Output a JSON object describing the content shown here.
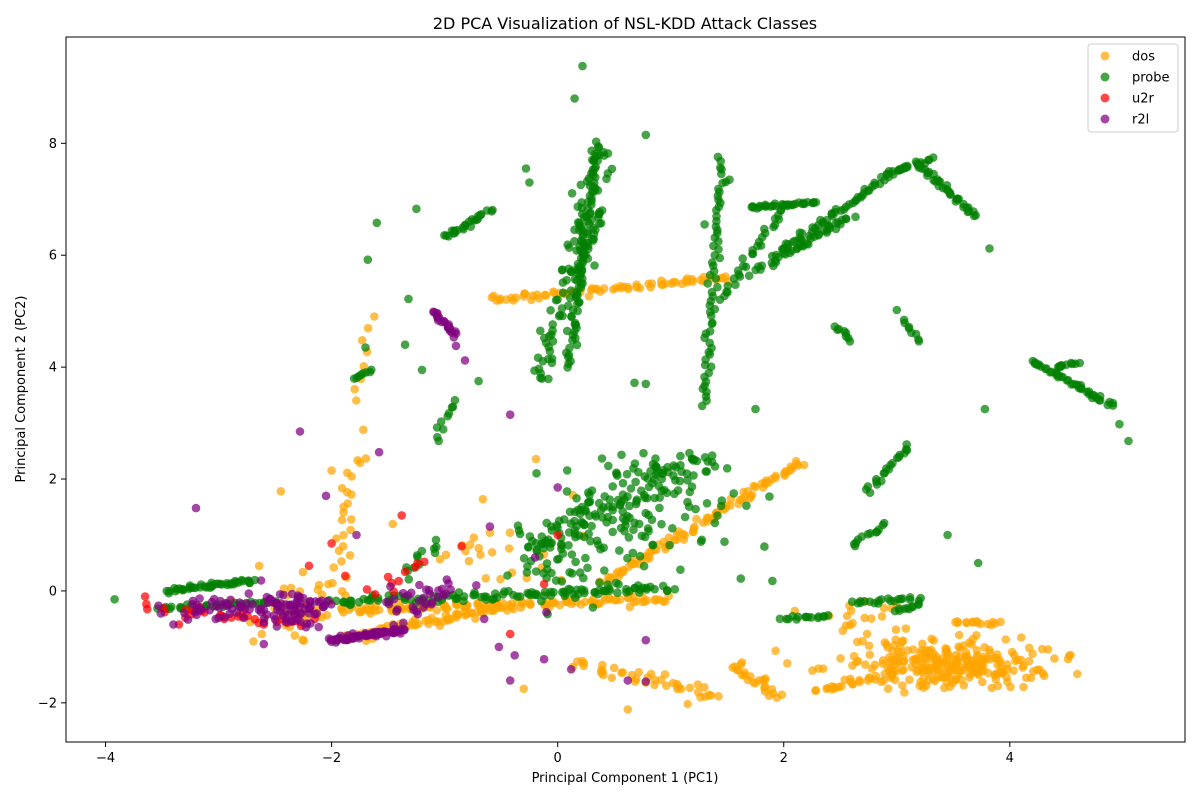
{
  "chart_data": {
    "type": "scatter",
    "title": "2D PCA Visualization of NSL-KDD Attack Classes",
    "xlabel": "Principal Component 1 (PC1)",
    "ylabel": "Principal Component 2 (PC2)",
    "xlim": [
      -4.35,
      5.55
    ],
    "ylim": [
      -2.7,
      9.9
    ],
    "xticks": [
      -4,
      -2,
      0,
      2,
      4
    ],
    "yticks": [
      -2,
      0,
      2,
      4,
      6,
      8
    ],
    "grid": false,
    "legend_position": "top-right",
    "series": [
      {
        "name": "dos",
        "color": "#FFA500",
        "segments": [
          {
            "from": [
              -1.9,
              -0.35
            ],
            "to": [
              0.95,
              -0.15
            ],
            "n": 120,
            "jitter": 0.08
          },
          {
            "from": [
              -1.9,
              -0.85
            ],
            "to": [
              -0.5,
              -0.3
            ],
            "n": 70,
            "jitter": 0.08
          },
          {
            "from": [
              0.4,
              0.15
            ],
            "to": [
              2.15,
              2.3
            ],
            "n": 90,
            "jitter": 0.06
          },
          {
            "from": [
              -0.6,
              5.2
            ],
            "to": [
              1.5,
              5.6
            ],
            "n": 70,
            "jitter": 0.06
          },
          {
            "from": [
              0.2,
              -1.3
            ],
            "to": [
              1.4,
              -1.9
            ],
            "n": 40,
            "jitter": 0.12
          },
          {
            "from": [
              1.55,
              -1.3
            ],
            "to": [
              1.95,
              -1.9
            ],
            "n": 25,
            "jitter": 0.08
          },
          {
            "from": [
              2.3,
              -1.75
            ],
            "to": [
              2.9,
              -1.5
            ],
            "n": 25,
            "jitter": 0.08
          },
          {
            "from": [
              -2.0,
              0.0
            ],
            "to": [
              -1.75,
              2.4
            ],
            "n": 25,
            "jitter": 0.1
          },
          {
            "from": [
              -1.8,
              3.4
            ],
            "to": [
              -1.65,
              4.9
            ],
            "n": 8,
            "jitter": 0.08
          },
          {
            "from": [
              3.5,
              -0.55
            ],
            "to": [
              3.9,
              -0.6
            ],
            "n": 15,
            "jitter": 0.05
          }
        ],
        "blobs": [
          {
            "center": [
              3.5,
              -1.3
            ],
            "sd": [
              0.45,
              0.22
            ],
            "n": 260
          },
          {
            "center": [
              -2.3,
              -0.35
            ],
            "sd": [
              0.25,
              0.3
            ],
            "n": 40
          },
          {
            "center": [
              -0.55,
              0.9
            ],
            "sd": [
              0.35,
              0.4
            ],
            "n": 25
          },
          {
            "center": [
              2.6,
              -0.5
            ],
            "sd": [
              0.25,
              0.2
            ],
            "n": 20
          }
        ],
        "points": [
          [
            -2.45,
            1.78
          ],
          [
            -2.0,
            2.15
          ],
          [
            0.62,
            -2.12
          ],
          [
            1.15,
            -2.02
          ],
          [
            -0.3,
            -1.75
          ],
          [
            2.18,
            2.25
          ],
          [
            -1.72,
            2.88
          ]
        ]
      },
      {
        "name": "probe",
        "color": "#008000",
        "segments": [
          {
            "from": [
              -3.45,
              0.0
            ],
            "to": [
              -2.7,
              0.18
            ],
            "n": 45,
            "jitter": 0.04
          },
          {
            "from": [
              -3.55,
              -0.32
            ],
            "to": [
              -2.5,
              -0.2
            ],
            "n": 35,
            "jitter": 0.04
          },
          {
            "from": [
              -2.0,
              -0.2
            ],
            "to": [
              1.0,
              0.05
            ],
            "n": 110,
            "jitter": 0.08
          },
          {
            "from": [
              -0.3,
              0.6
            ],
            "to": [
              1.3,
              2.5
            ],
            "n": 120,
            "jitter": 0.3
          },
          {
            "from": [
              -0.15,
              3.8
            ],
            "to": [
              0.4,
              7.9
            ],
            "n": 90,
            "jitter": 0.12
          },
          {
            "from": [
              0.1,
              4.0
            ],
            "to": [
              0.35,
              8.0
            ],
            "n": 70,
            "jitter": 0.04
          },
          {
            "from": [
              0.15,
              5.6
            ],
            "to": [
              0.4,
              6.8
            ],
            "n": 25,
            "jitter": 0.05
          },
          {
            "from": [
              1.3,
              3.3
            ],
            "to": [
              1.45,
              7.75
            ],
            "n": 60,
            "jitter": 0.04
          },
          {
            "from": [
              1.45,
              5.2
            ],
            "to": [
              2.0,
              6.9
            ],
            "n": 30,
            "jitter": 0.05
          },
          {
            "from": [
              1.7,
              6.85
            ],
            "to": [
              2.3,
              6.95
            ],
            "n": 30,
            "jitter": 0.03
          },
          {
            "from": [
              1.75,
              5.7
            ],
            "to": [
              2.9,
              7.4
            ],
            "n": 60,
            "jitter": 0.05
          },
          {
            "from": [
              2.0,
              6.0
            ],
            "to": [
              2.6,
              6.7
            ],
            "n": 30,
            "jitter": 0.05
          },
          {
            "from": [
              2.9,
              7.45
            ],
            "to": [
              3.3,
              7.7
            ],
            "n": 25,
            "jitter": 0.04
          },
          {
            "from": [
              3.2,
              7.6
            ],
            "to": [
              3.7,
              6.7
            ],
            "n": 35,
            "jitter": 0.04
          },
          {
            "from": [
              4.2,
              4.1
            ],
            "to": [
              4.9,
              3.3
            ],
            "n": 40,
            "jitter": 0.04
          },
          {
            "from": [
              4.4,
              4.0
            ],
            "to": [
              4.6,
              4.1
            ],
            "n": 10,
            "jitter": 0.03
          },
          {
            "from": [
              -1.0,
              6.3
            ],
            "to": [
              -0.6,
              6.8
            ],
            "n": 25,
            "jitter": 0.05
          },
          {
            "from": [
              -1.1,
              2.7
            ],
            "to": [
              -0.9,
              3.4
            ],
            "n": 10,
            "jitter": 0.05
          },
          {
            "from": [
              2.0,
              -0.5
            ],
            "to": [
              2.4,
              -0.45
            ],
            "n": 15,
            "jitter": 0.03
          },
          {
            "from": [
              2.6,
              -0.2
            ],
            "to": [
              3.2,
              -0.15
            ],
            "n": 20,
            "jitter": 0.04
          },
          {
            "from": [
              2.75,
              1.75
            ],
            "to": [
              3.1,
              2.6
            ],
            "n": 20,
            "jitter": 0.04
          },
          {
            "from": [
              2.6,
              0.8
            ],
            "to": [
              2.9,
              1.2
            ],
            "n": 12,
            "jitter": 0.03
          },
          {
            "from": [
              3.0,
              -0.35
            ],
            "to": [
              3.2,
              -0.25
            ],
            "n": 10,
            "jitter": 0.03
          },
          {
            "from": [
              2.45,
              4.75
            ],
            "to": [
              2.6,
              4.45
            ],
            "n": 8,
            "jitter": 0.03
          },
          {
            "from": [
              3.05,
              4.85
            ],
            "to": [
              3.2,
              4.45
            ],
            "n": 8,
            "jitter": 0.03
          },
          {
            "from": [
              -1.8,
              3.8
            ],
            "to": [
              -1.65,
              3.95
            ],
            "n": 8,
            "jitter": 0.02
          },
          {
            "from": [
              -1.35,
              0.3
            ],
            "to": [
              -1.05,
              0.9
            ],
            "n": 12,
            "jitter": 0.08
          }
        ],
        "blobs": [
          {
            "center": [
              0.8,
              1.5
            ],
            "sd": [
              0.45,
              0.5
            ],
            "n": 90
          },
          {
            "center": [
              0.1,
              0.4
            ],
            "sd": [
              0.3,
              0.3
            ],
            "n": 45
          }
        ],
        "points": [
          [
            -3.92,
            -0.15
          ],
          [
            0.22,
            9.38
          ],
          [
            0.15,
            8.8
          ],
          [
            0.78,
            8.15
          ],
          [
            -1.6,
            6.58
          ],
          [
            -1.25,
            6.83
          ],
          [
            -1.68,
            5.92
          ],
          [
            -1.32,
            5.22
          ],
          [
            -0.7,
            3.75
          ],
          [
            -0.28,
            7.55
          ],
          [
            -0.25,
            7.3
          ],
          [
            3.82,
            6.12
          ],
          [
            5.05,
            2.68
          ],
          [
            4.97,
            2.98
          ],
          [
            3.78,
            3.25
          ],
          [
            3.0,
            5.02
          ],
          [
            3.45,
            1.0
          ],
          [
            3.72,
            0.5
          ],
          [
            1.3,
            6.55
          ],
          [
            1.52,
            7.35
          ],
          [
            1.75,
            3.25
          ],
          [
            1.9,
            0.18
          ],
          [
            1.62,
            0.22
          ],
          [
            -1.7,
            4.35
          ],
          [
            -1.35,
            4.4
          ],
          [
            -1.2,
            3.95
          ],
          [
            0.68,
            3.72
          ],
          [
            0.78,
            3.7
          ]
        ]
      },
      {
        "name": "u2r",
        "color": "#FF0000",
        "segments": [
          {
            "from": [
              -3.6,
              -0.3
            ],
            "to": [
              -2.3,
              -0.55
            ],
            "n": 25,
            "jitter": 0.1
          },
          {
            "from": [
              -1.7,
              -0.1
            ],
            "to": [
              -1.2,
              0.5
            ],
            "n": 8,
            "jitter": 0.1
          }
        ],
        "blobs": [],
        "points": [
          [
            -3.65,
            -0.1
          ],
          [
            -3.35,
            -0.6
          ],
          [
            -2.2,
            0.45
          ],
          [
            -2.15,
            -0.5
          ],
          [
            -1.38,
            1.35
          ],
          [
            -0.42,
            -0.77
          ],
          [
            -0.12,
            0.12
          ],
          [
            0.0,
            1.0
          ],
          [
            -0.85,
            0.8
          ],
          [
            -1.5,
            0.25
          ],
          [
            -1.18,
            0.52
          ],
          [
            -2.0,
            0.85
          ],
          [
            -1.88,
            0.27
          ],
          [
            -2.6,
            -0.6
          ],
          [
            -2.95,
            -0.5
          ]
        ]
      },
      {
        "name": "r2l",
        "color": "#800080",
        "segments": [
          {
            "from": [
              -2.0,
              -0.88
            ],
            "to": [
              -1.4,
              -0.7
            ],
            "n": 70,
            "jitter": 0.05
          },
          {
            "from": [
              -1.45,
              -0.7
            ],
            "to": [
              -1.35,
              -0.7
            ],
            "n": 6,
            "jitter": 0.02
          },
          {
            "from": [
              -1.1,
              5.0
            ],
            "to": [
              -0.9,
              4.55
            ],
            "n": 22,
            "jitter": 0.03
          },
          {
            "from": [
              -1.2,
              -0.35
            ],
            "to": [
              -0.95,
              0.2
            ],
            "n": 12,
            "jitter": 0.08
          }
        ],
        "blobs": [
          {
            "center": [
              -3.0,
              -0.3
            ],
            "sd": [
              0.22,
              0.12
            ],
            "n": 35
          },
          {
            "center": [
              -2.4,
              -0.3
            ],
            "sd": [
              0.18,
              0.16
            ],
            "n": 80
          },
          {
            "center": [
              -1.3,
              -0.2
            ],
            "sd": [
              0.2,
              0.2
            ],
            "n": 20
          }
        ],
        "points": [
          [
            -3.2,
            1.48
          ],
          [
            -2.28,
            2.85
          ],
          [
            -1.58,
            2.48
          ],
          [
            -2.05,
            1.7
          ],
          [
            -1.78,
            1.0
          ],
          [
            -0.52,
            -1.0
          ],
          [
            -0.38,
            -1.15
          ],
          [
            -0.42,
            -1.6
          ],
          [
            -0.12,
            -1.22
          ],
          [
            -0.1,
            -0.38
          ],
          [
            0.12,
            -1.4
          ],
          [
            0.62,
            -1.6
          ],
          [
            0.78,
            -1.62
          ],
          [
            0.78,
            -0.88
          ],
          [
            -0.42,
            3.15
          ],
          [
            -0.82,
            4.12
          ],
          [
            -0.9,
            4.38
          ],
          [
            0.0,
            1.85
          ],
          [
            -0.6,
            1.15
          ],
          [
            -0.65,
            -0.5
          ],
          [
            -3.4,
            -0.6
          ],
          [
            -2.6,
            -0.95
          ],
          [
            -1.48,
            0.08
          ],
          [
            -0.72,
            0.1
          ],
          [
            -0.2,
            0.6
          ]
        ]
      }
    ]
  }
}
